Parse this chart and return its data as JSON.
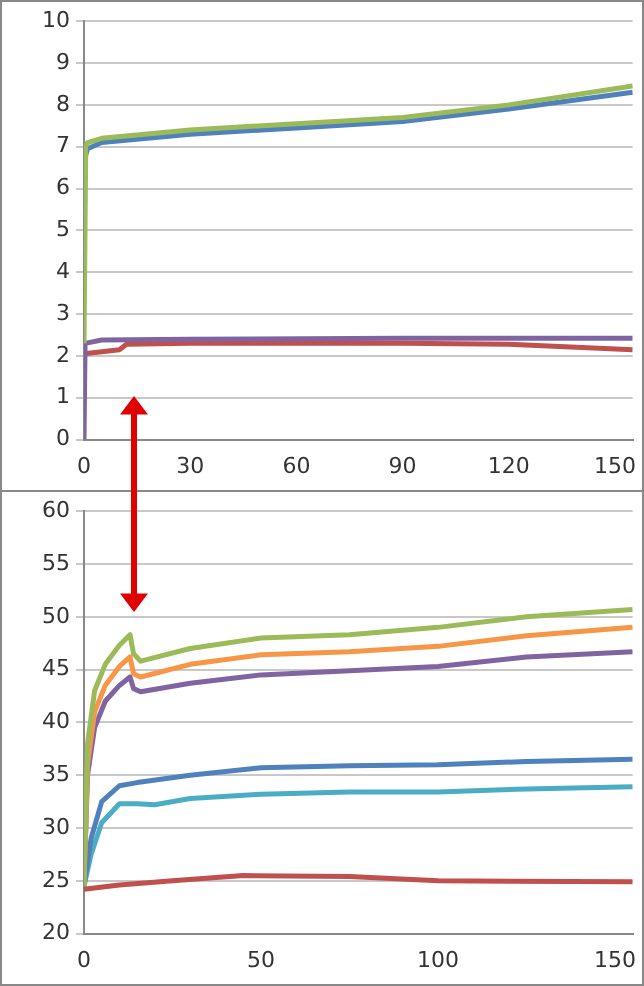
{
  "chart_data": [
    {
      "type": "line",
      "marker": "none",
      "grid": "y",
      "legend": false,
      "xlim": [
        0,
        155
      ],
      "xticks": [
        0,
        30,
        60,
        90,
        120,
        150
      ],
      "ylim": [
        0,
        10
      ],
      "yticks": [
        0,
        1,
        2,
        3,
        4,
        5,
        6,
        7,
        8,
        9,
        10
      ],
      "series": [
        {
          "color": "#9bbb59",
          "x": [
            0,
            0.5,
            1,
            5,
            30,
            60,
            90,
            120,
            155
          ],
          "values": [
            2.3,
            7.0,
            7.1,
            7.2,
            7.4,
            7.55,
            7.7,
            8.0,
            8.45
          ]
        },
        {
          "color": "#4f81bd",
          "x": [
            0.5,
            1,
            5,
            30,
            60,
            90,
            120,
            155
          ],
          "values": [
            6.8,
            6.95,
            7.1,
            7.3,
            7.45,
            7.6,
            7.9,
            8.3
          ]
        },
        {
          "color": "#8064a2",
          "x": [
            0,
            0.3,
            5,
            30,
            90,
            155
          ],
          "values": [
            0,
            2.3,
            2.38,
            2.4,
            2.42,
            2.42
          ]
        },
        {
          "color": "#c0504d",
          "x": [
            0,
            10,
            12,
            30,
            90,
            120,
            155
          ],
          "values": [
            2.05,
            2.15,
            2.28,
            2.3,
            2.3,
            2.28,
            2.15
          ]
        }
      ]
    },
    {
      "type": "line",
      "marker": "none",
      "grid": "y",
      "legend": false,
      "xlim": [
        0,
        155
      ],
      "xticks": [
        0,
        50,
        100,
        150
      ],
      "ylim": [
        20,
        60
      ],
      "yticks": [
        20,
        25,
        30,
        35,
        40,
        45,
        50,
        55,
        60
      ],
      "series": [
        {
          "color": "#9bbb59",
          "x": [
            0,
            1,
            3,
            6,
            10,
            13,
            14,
            16,
            30,
            50,
            75,
            100,
            125,
            155
          ],
          "values": [
            24.5,
            38,
            43,
            45.5,
            47.3,
            48.3,
            46.5,
            45.8,
            47,
            48,
            48.3,
            49,
            50,
            50.7
          ]
        },
        {
          "color": "#f79646",
          "x": [
            0,
            1,
            3,
            6,
            10,
            13,
            14,
            16,
            30,
            50,
            75,
            100,
            125,
            155
          ],
          "values": [
            24.5,
            36,
            41,
            43.5,
            45.3,
            46.2,
            44.6,
            44.3,
            45.5,
            46.4,
            46.7,
            47.2,
            48.2,
            49
          ]
        },
        {
          "color": "#8064a2",
          "x": [
            0,
            1,
            3,
            6,
            10,
            13,
            14,
            16,
            30,
            50,
            75,
            100,
            125,
            155
          ],
          "values": [
            24.5,
            35,
            39.5,
            42,
            43.5,
            44.3,
            43.2,
            42.9,
            43.7,
            44.5,
            44.9,
            45.3,
            46.2,
            46.7
          ]
        },
        {
          "color": "#4f81bd",
          "x": [
            0,
            2,
            5,
            10,
            15,
            30,
            50,
            75,
            100,
            125,
            155
          ],
          "values": [
            24.5,
            29,
            32.5,
            34,
            34.3,
            35,
            35.7,
            35.9,
            36,
            36.3,
            36.5
          ]
        },
        {
          "color": "#4bacc6",
          "x": [
            0,
            2,
            5,
            10,
            15,
            20,
            30,
            50,
            75,
            100,
            125,
            155
          ],
          "values": [
            24.5,
            27.5,
            30.5,
            32.3,
            32.3,
            32.2,
            32.8,
            33.2,
            33.4,
            33.4,
            33.7,
            33.9
          ]
        },
        {
          "color": "#c0504d",
          "x": [
            0,
            10,
            25,
            45,
            75,
            100,
            155
          ],
          "values": [
            24.2,
            24.6,
            25,
            25.5,
            25.4,
            25,
            24.9
          ]
        }
      ]
    }
  ]
}
